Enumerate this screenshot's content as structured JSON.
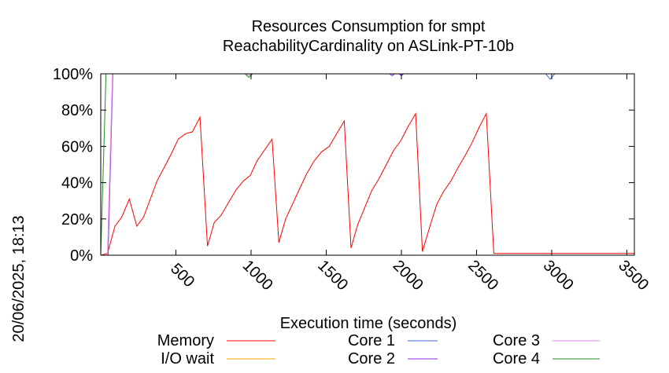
{
  "chart_data": {
    "type": "line",
    "title_line1": "Resources Consumption for smpt",
    "title_line2": "ReachabilityCardinality on ASLink-PT-10b",
    "xlabel": "Execution time (seconds)",
    "side_label": "20/06/2025, 18:13",
    "xlim": [
      0,
      3550
    ],
    "ylim": [
      0,
      100
    ],
    "x_ticks": [
      500,
      1000,
      1500,
      2000,
      2500,
      3000,
      3500
    ],
    "y_ticks": [
      {
        "value": 0,
        "label": "0%"
      },
      {
        "value": 20,
        "label": "20%"
      },
      {
        "value": 40,
        "label": "40%"
      },
      {
        "value": 60,
        "label": "60%"
      },
      {
        "value": 80,
        "label": "80%"
      },
      {
        "value": 100,
        "label": "100%"
      }
    ],
    "grid": false,
    "legend_position": "bottom",
    "series": [
      {
        "name": "Memory",
        "color": "#ff0000",
        "points": [
          [
            0,
            0
          ],
          [
            45,
            1
          ],
          [
            95,
            16
          ],
          [
            140,
            21
          ],
          [
            190,
            31
          ],
          [
            240,
            16
          ],
          [
            285,
            21
          ],
          [
            330,
            31
          ],
          [
            375,
            41
          ],
          [
            420,
            48
          ],
          [
            470,
            56
          ],
          [
            515,
            64
          ],
          [
            565,
            67
          ],
          [
            610,
            68
          ],
          [
            660,
            76
          ],
          [
            710,
            5
          ],
          [
            755,
            18
          ],
          [
            800,
            22
          ],
          [
            850,
            29
          ],
          [
            900,
            36
          ],
          [
            950,
            41
          ],
          [
            995,
            44
          ],
          [
            1040,
            52
          ],
          [
            1090,
            58
          ],
          [
            1140,
            64
          ],
          [
            1185,
            7
          ],
          [
            1230,
            20
          ],
          [
            1275,
            28
          ],
          [
            1325,
            37
          ],
          [
            1370,
            45
          ],
          [
            1420,
            52
          ],
          [
            1470,
            57
          ],
          [
            1520,
            60
          ],
          [
            1570,
            67
          ],
          [
            1620,
            74
          ],
          [
            1665,
            4
          ],
          [
            1710,
            17
          ],
          [
            1755,
            26
          ],
          [
            1805,
            36
          ],
          [
            1850,
            42
          ],
          [
            1900,
            50
          ],
          [
            1950,
            58
          ],
          [
            1995,
            63
          ],
          [
            2045,
            71
          ],
          [
            2095,
            78
          ],
          [
            2140,
            2
          ],
          [
            2190,
            16
          ],
          [
            2235,
            28
          ],
          [
            2280,
            35
          ],
          [
            2330,
            41
          ],
          [
            2375,
            48
          ],
          [
            2425,
            55
          ],
          [
            2470,
            62
          ],
          [
            2520,
            71
          ],
          [
            2565,
            78
          ],
          [
            2615,
            1
          ],
          [
            3550,
            1
          ]
        ]
      },
      {
        "name": "I/O wait",
        "color": "#ffa500",
        "points": [
          [
            0,
            0
          ],
          [
            3550,
            0
          ]
        ]
      },
      {
        "name": "Core 1",
        "color": "#4169e1",
        "points": [
          [
            0,
            0
          ],
          [
            48,
            0
          ],
          [
            80,
            100
          ],
          [
            1920,
            100
          ],
          [
            1940,
            99
          ],
          [
            1955,
            100
          ],
          [
            1985,
            100
          ],
          [
            2000,
            99
          ],
          [
            2015,
            100
          ],
          [
            2960,
            100
          ],
          [
            2990,
            97
          ],
          [
            3020,
            100
          ],
          [
            3550,
            100
          ]
        ]
      },
      {
        "name": "Core 2",
        "color": "#8a2be2",
        "points": [
          [
            0,
            0
          ],
          [
            48,
            0
          ],
          [
            80,
            100
          ],
          [
            1920,
            100
          ],
          [
            1940,
            99
          ],
          [
            1955,
            100
          ],
          [
            1985,
            100
          ],
          [
            2000,
            99
          ],
          [
            2015,
            100
          ],
          [
            3550,
            100
          ]
        ]
      },
      {
        "name": "Core 3",
        "color": "#ee82ee",
        "points": [
          [
            0,
            0
          ],
          [
            45,
            0
          ],
          [
            78,
            100
          ],
          [
            970,
            100
          ],
          [
            985,
            99
          ],
          [
            1000,
            100
          ],
          [
            3550,
            100
          ]
        ]
      },
      {
        "name": "Core 4",
        "color": "#228b22",
        "points": [
          [
            0,
            0
          ],
          [
            35,
            100
          ],
          [
            960,
            100
          ],
          [
            985,
            98
          ],
          [
            1010,
            100
          ],
          [
            3550,
            100
          ]
        ]
      }
    ]
  }
}
